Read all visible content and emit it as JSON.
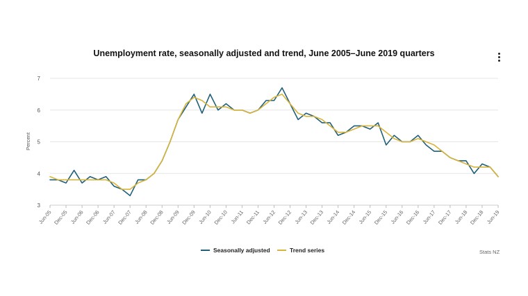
{
  "chart_data": {
    "type": "line",
    "title": "Unemployment rate, seasonally adjusted and trend, June 2005–June 2019 quarters",
    "ylabel": "Percent",
    "xlabel": "",
    "ylim": [
      3,
      7
    ],
    "yticks": [
      "3",
      "4",
      "5",
      "6",
      "7"
    ],
    "grid": true,
    "legend_position": "bottom",
    "x": [
      "Jun-05",
      "Sep-05",
      "Dec-05",
      "Mar-06",
      "Jun-06",
      "Sep-06",
      "Dec-06",
      "Mar-07",
      "Jun-07",
      "Sep-07",
      "Dec-07",
      "Mar-08",
      "Jun-08",
      "Sep-08",
      "Dec-08",
      "Mar-09",
      "Jun-09",
      "Sep-09",
      "Dec-09",
      "Mar-10",
      "Jun-10",
      "Sep-10",
      "Dec-10",
      "Mar-11",
      "Jun-11",
      "Sep-11",
      "Dec-11",
      "Mar-12",
      "Jun-12",
      "Sep-12",
      "Dec-12",
      "Mar-13",
      "Jun-13",
      "Sep-13",
      "Dec-13",
      "Mar-14",
      "Jun-14",
      "Sep-14",
      "Dec-14",
      "Mar-15",
      "Jun-15",
      "Sep-15",
      "Dec-15",
      "Mar-16",
      "Jun-16",
      "Sep-16",
      "Dec-16",
      "Mar-17",
      "Jun-17",
      "Sep-17",
      "Dec-17",
      "Mar-18",
      "Jun-18",
      "Sep-18",
      "Dec-18",
      "Mar-19",
      "Jun-19"
    ],
    "x_tick_labels": [
      "Jun-05",
      "Dec-05",
      "Jun-06",
      "Dec-06",
      "Jun-07",
      "Dec-07",
      "Jun-08",
      "Dec-08",
      "Jun-09",
      "Dec-09",
      "Jun-10",
      "Dec-10",
      "Jun-11",
      "Dec-11",
      "Jun-12",
      "Dec-12",
      "Jun-13",
      "Dec-13",
      "Jun-14",
      "Dec-14",
      "Jun-15",
      "Dec-15",
      "Jun-16",
      "Dec-16",
      "Jun-17",
      "Dec-17",
      "Jun-18",
      "Dec-18",
      "Jun-19"
    ],
    "series": [
      {
        "name": "Seasonally adjusted",
        "color": "#1f5f7a",
        "values": [
          3.8,
          3.8,
          3.7,
          4.1,
          3.7,
          3.9,
          3.8,
          3.9,
          3.6,
          3.5,
          3.3,
          3.8,
          3.8,
          4.0,
          4.4,
          5.0,
          5.7,
          6.1,
          6.5,
          5.9,
          6.5,
          6.0,
          6.2,
          6.0,
          6.0,
          5.9,
          6.0,
          6.3,
          6.3,
          6.7,
          6.2,
          5.7,
          5.9,
          5.8,
          5.6,
          5.6,
          5.2,
          5.3,
          5.5,
          5.5,
          5.4,
          5.6,
          4.9,
          5.2,
          5.0,
          5.0,
          5.2,
          4.9,
          4.7,
          4.7,
          4.5,
          4.4,
          4.4,
          4.0,
          4.3,
          4.2,
          3.9
        ]
      },
      {
        "name": "Trend series",
        "color": "#d9b43a",
        "values": [
          3.9,
          3.8,
          3.8,
          3.8,
          3.8,
          3.8,
          3.8,
          3.8,
          3.7,
          3.5,
          3.5,
          3.7,
          3.8,
          4.0,
          4.4,
          5.0,
          5.7,
          6.2,
          6.4,
          6.3,
          6.1,
          6.1,
          6.1,
          6.0,
          6.0,
          5.9,
          6.0,
          6.2,
          6.4,
          6.5,
          6.2,
          5.9,
          5.8,
          5.8,
          5.7,
          5.5,
          5.3,
          5.3,
          5.4,
          5.5,
          5.5,
          5.5,
          5.3,
          5.1,
          5.0,
          5.0,
          5.1,
          5.0,
          4.9,
          4.7,
          4.5,
          4.4,
          4.3,
          4.2,
          4.2,
          4.2,
          3.9
        ]
      }
    ]
  },
  "menu": {
    "icon": "more-vertical-icon"
  },
  "source": "Stats NZ"
}
